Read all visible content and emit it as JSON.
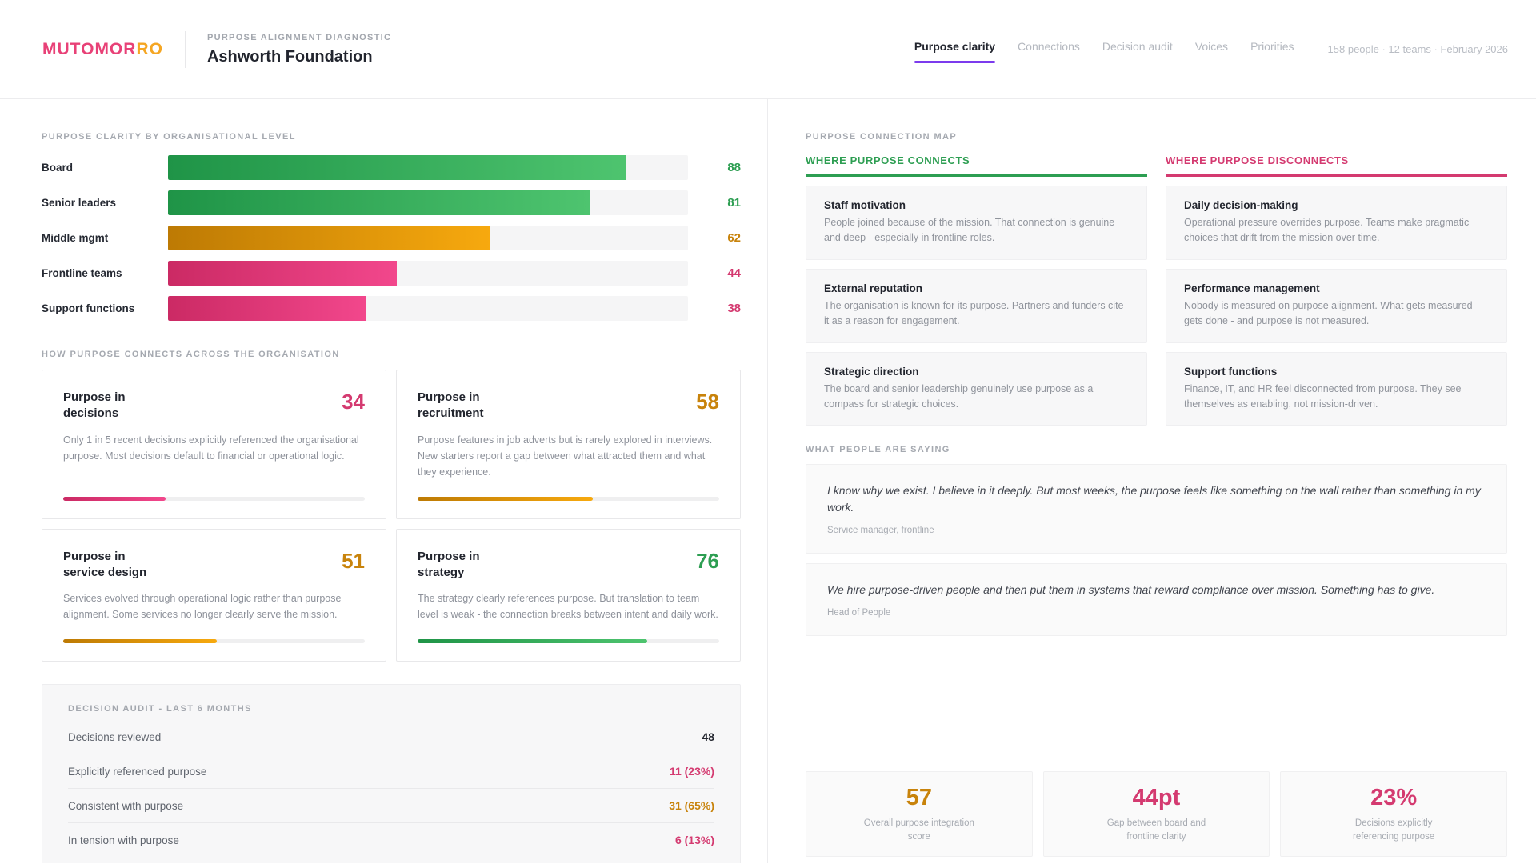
{
  "colors": {
    "pink": "#d43a70",
    "pink_dark": "#cb2a64",
    "pink_light": "#f2478c",
    "orange": "#c8830b",
    "orange_dark": "#bd7a04",
    "orange_light": "#f7a90e",
    "green": "#2d9e52",
    "green_dark": "#1f9447",
    "green_light": "#4ec46f",
    "purple": "#7c3bed",
    "logo_pink": "#e84177",
    "logo_orange": "#f5a623"
  },
  "header": {
    "logo_part1": "MUTOMOR",
    "logo_part2": "RO",
    "eyebrow": "PURPOSE ALIGNMENT DIAGNOSTIC",
    "title": "Ashworth Foundation",
    "meta": "158 people · 12 teams · February 2026",
    "tabs": [
      {
        "label": "Purpose clarity",
        "active": true
      },
      {
        "label": "Connections",
        "active": false
      },
      {
        "label": "Decision audit",
        "active": false
      },
      {
        "label": "Voices",
        "active": false
      },
      {
        "label": "Priorities",
        "active": false
      }
    ]
  },
  "chart_data": {
    "type": "bar",
    "orientation": "horizontal",
    "title": "Purpose clarity by organisational level",
    "categories": [
      "Board",
      "Senior leaders",
      "Middle mgmt",
      "Frontline teams",
      "Support functions"
    ],
    "values": [
      88,
      81,
      62,
      44,
      38
    ],
    "xlim": [
      0,
      100
    ],
    "grid": false,
    "legend": "none"
  },
  "clarity": {
    "title": "PURPOSE CLARITY BY ORGANISATIONAL LEVEL",
    "bars": [
      {
        "label": "Board",
        "value": 88,
        "tone": "green"
      },
      {
        "label": "Senior leaders",
        "value": 81,
        "tone": "green"
      },
      {
        "label": "Middle mgmt",
        "value": 62,
        "tone": "orange"
      },
      {
        "label": "Frontline teams",
        "value": 44,
        "tone": "pink"
      },
      {
        "label": "Support functions",
        "value": 38,
        "tone": "pink"
      }
    ]
  },
  "connects": {
    "title": "HOW PURPOSE CONNECTS ACROSS THE ORGANISATION",
    "cards": [
      {
        "title_line1": "Purpose in",
        "title_line2": "decisions",
        "score": 34,
        "tone": "pink",
        "description": "Only 1 in 5 recent decisions explicitly referenced the organisational purpose. Most decisions default to financial or operational logic."
      },
      {
        "title_line1": "Purpose in",
        "title_line2": "recruitment",
        "score": 58,
        "tone": "orange",
        "description": "Purpose features in job adverts but is rarely explored in interviews. New starters report a gap between what attracted them and what they experience."
      },
      {
        "title_line1": "Purpose in",
        "title_line2": "service design",
        "score": 51,
        "tone": "orange",
        "description": "Services evolved through operational logic rather than purpose alignment. Some services no longer clearly serve the mission."
      },
      {
        "title_line1": "Purpose in",
        "title_line2": "strategy",
        "score": 76,
        "tone": "green",
        "description": "The strategy clearly references purpose. But translation to team level is weak - the connection breaks between intent and daily work."
      }
    ]
  },
  "audit": {
    "title": "DECISION AUDIT - LAST 6 MONTHS",
    "rows": [
      {
        "label": "Decisions reviewed",
        "value": "48",
        "tone": "dark"
      },
      {
        "label": "Explicitly referenced purpose",
        "value": "11 (23%)",
        "tone": "pink"
      },
      {
        "label": "Consistent with purpose",
        "value": "31 (65%)",
        "tone": "orange"
      },
      {
        "label": "In tension with purpose",
        "value": "6 (13%)",
        "tone": "pink"
      }
    ]
  },
  "map": {
    "title": "PURPOSE CONNECTION MAP",
    "connects": {
      "heading": "WHERE PURPOSE CONNECTS",
      "tone": "green",
      "items": [
        {
          "title": "Staff motivation",
          "description": "People joined because of the mission. That connection is genuine and deep - especially in frontline roles."
        },
        {
          "title": "External reputation",
          "description": "The organisation is known for its purpose. Partners and funders cite it as a reason for engagement."
        },
        {
          "title": "Strategic direction",
          "description": "The board and senior leadership genuinely use purpose as a compass for strategic choices."
        }
      ]
    },
    "disconnects": {
      "heading": "WHERE PURPOSE DISCONNECTS",
      "tone": "pink",
      "items": [
        {
          "title": "Daily decision-making",
          "description": "Operational pressure overrides purpose. Teams make pragmatic choices that drift from the mission over time."
        },
        {
          "title": "Performance management",
          "description": "Nobody is measured on purpose alignment. What gets measured gets done - and purpose is not measured."
        },
        {
          "title": "Support functions",
          "description": "Finance, IT, and HR feel disconnected from purpose. They see themselves as enabling, not mission-driven."
        }
      ]
    }
  },
  "voices": {
    "title": "WHAT PEOPLE ARE SAYING",
    "quotes": [
      {
        "text": "I know why we exist. I believe in it deeply. But most weeks, the purpose feels like something on the wall rather than something in my work.",
        "attribution": "Service manager, frontline"
      },
      {
        "text": "We hire purpose-driven people and then put them in systems that reward compliance over mission. Something has to give.",
        "attribution": "Head of People"
      }
    ]
  },
  "stats": [
    {
      "value": "57",
      "tone": "orange",
      "label": "Overall purpose integration score"
    },
    {
      "value": "44pt",
      "tone": "pink",
      "label": "Gap between board and frontline clarity"
    },
    {
      "value": "23%",
      "tone": "pink",
      "label": "Decisions explicitly referencing purpose"
    }
  ]
}
